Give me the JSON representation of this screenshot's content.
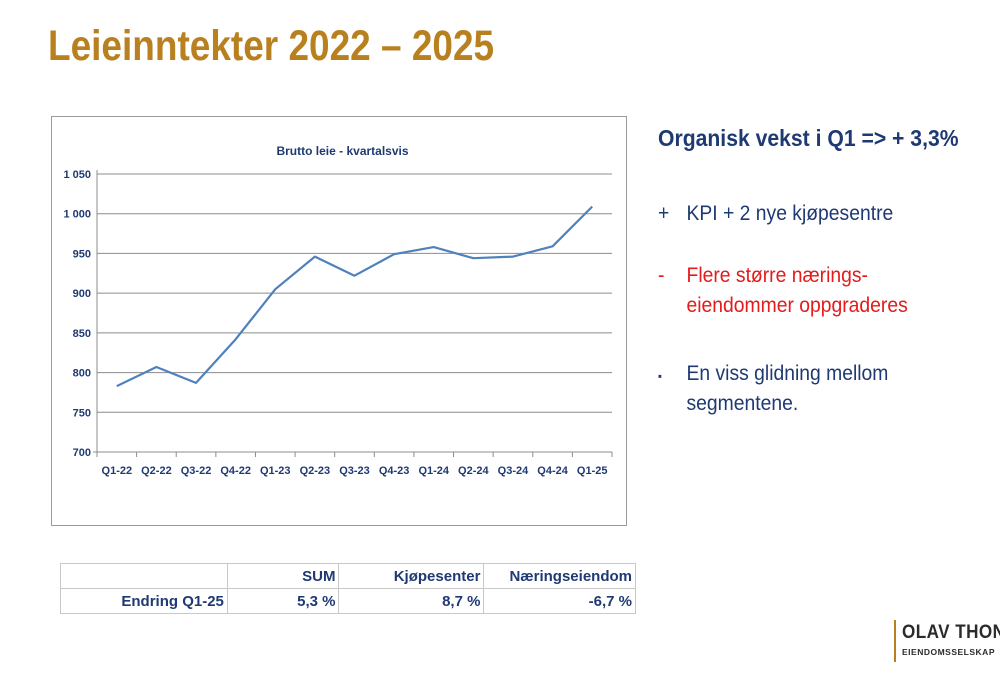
{
  "title": "Leieinntekter 2022 – 2025",
  "chart_data": {
    "type": "line",
    "title": "Brutto leie - kvartalsvis",
    "xlabel": "",
    "ylabel": "",
    "categories": [
      "Q1-22",
      "Q2-22",
      "Q3-22",
      "Q4-22",
      "Q1-23",
      "Q2-23",
      "Q3-23",
      "Q4-23",
      "Q1-24",
      "Q2-24",
      "Q3-24",
      "Q4-24",
      "Q1-25"
    ],
    "series": [
      {
        "values": [
          783,
          807,
          787,
          842,
          905,
          946,
          922,
          949,
          958,
          944,
          946,
          959,
          1009
        ]
      }
    ],
    "ylim": [
      700,
      1050
    ],
    "yticks": [
      700,
      750,
      800,
      850,
      900,
      950,
      1000,
      1050
    ],
    "ytick_labels": [
      "700",
      "750",
      "800",
      "850",
      "900",
      "950",
      "1 000",
      "1 050"
    ],
    "grid": true,
    "legend": "none",
    "line_color": "#4f81bd"
  },
  "bullets": {
    "headline": "Organisk vekst i Q1 => + 3,3%",
    "items": [
      {
        "mark": "+",
        "lines": [
          "KPI + 2 nye kjøpesentre"
        ],
        "color": "#1f3a73"
      },
      {
        "mark": "-",
        "lines": [
          "Flere større nærings-",
          "eiendommer oppgraderes"
        ],
        "color": "#e31b1b"
      },
      {
        "mark": "▪",
        "lines": [
          "En viss glidning mellom",
          "segmentene."
        ],
        "color": "#1f3a73"
      }
    ]
  },
  "table": {
    "headers": [
      "",
      "SUM",
      "Kjøpesenter",
      "Næringseiendom"
    ],
    "row": [
      "Endring Q1-25",
      "5,3 %",
      "8,7 %",
      "-6,7 %"
    ]
  },
  "logo": {
    "line1": "OLAV THON",
    "line2": "EIENDOMSSELSKAP"
  }
}
